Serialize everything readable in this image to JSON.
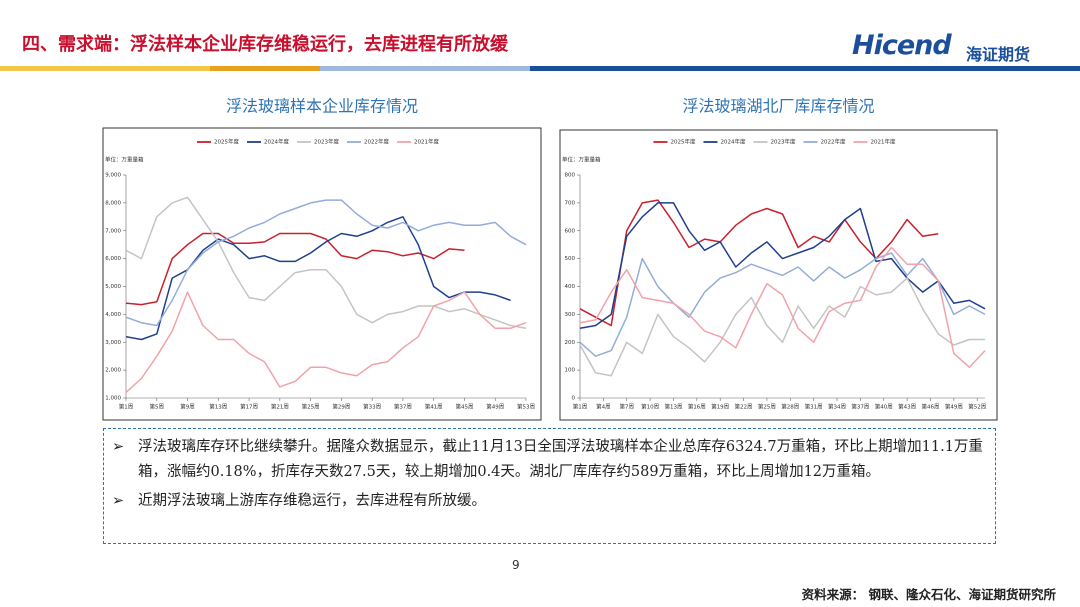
{
  "header": {
    "title": "四、需求端：浮法样本企业库存维稳运行，去库进程有所放缓",
    "logo": "Hicend",
    "logo_cn": "海证期货"
  },
  "chart_data": [
    {
      "type": "line",
      "title": "浮法玻璃样本企业库存情况",
      "unit": "单位：万重量箱",
      "x": [
        1,
        3,
        5,
        7,
        9,
        11,
        13,
        15,
        17,
        19,
        21,
        23,
        25,
        27,
        29,
        31,
        33,
        35,
        37,
        39,
        41,
        43,
        45,
        47,
        49,
        51,
        53
      ],
      "xlim": [
        1,
        53
      ],
      "xticks": [
        {
          "value": 1,
          "label": "第1周"
        },
        {
          "value": 5,
          "label": "第5周"
        },
        {
          "value": 9,
          "label": "第9周"
        },
        {
          "value": 13,
          "label": "第13周"
        },
        {
          "value": 17,
          "label": "第17周"
        },
        {
          "value": 21,
          "label": "第21周"
        },
        {
          "value": 25,
          "label": "第25周"
        },
        {
          "value": 29,
          "label": "第29周"
        },
        {
          "value": 33,
          "label": "第33周"
        },
        {
          "value": 37,
          "label": "第37周"
        },
        {
          "value": 41,
          "label": "第41周"
        },
        {
          "value": 45,
          "label": "第45周"
        },
        {
          "value": 49,
          "label": "第49周"
        },
        {
          "value": 53,
          "label": "第53周"
        }
      ],
      "ylim": [
        1000,
        9000
      ],
      "yticks": [
        {
          "value": 1000,
          "label": "1,000"
        },
        {
          "value": 2000,
          "label": "2,000"
        },
        {
          "value": 3000,
          "label": "3,000"
        },
        {
          "value": 4000,
          "label": "4,000"
        },
        {
          "value": 5000,
          "label": "5,000"
        },
        {
          "value": 6000,
          "label": "6,000"
        },
        {
          "value": 7000,
          "label": "7,000"
        },
        {
          "value": 8000,
          "label": "8,000"
        },
        {
          "value": 9000,
          "label": "9,000"
        }
      ],
      "series": [
        {
          "name": "2025年度",
          "color": "#c8202c",
          "values": [
            4400,
            4350,
            4450,
            6000,
            6500,
            6900,
            6900,
            6550,
            6550,
            6600,
            6900,
            6900,
            6900,
            6700,
            6100,
            6000,
            6300,
            6250,
            6100,
            6200,
            6000,
            6350,
            6300,
            null,
            null,
            null,
            null
          ]
        },
        {
          "name": "2024年度",
          "color": "#1f3f8f",
          "values": [
            3200,
            3100,
            3300,
            5300,
            5600,
            6300,
            6700,
            6500,
            6000,
            6100,
            5900,
            5900,
            6200,
            6600,
            6900,
            6800,
            7000,
            7300,
            7500,
            6500,
            5000,
            4600,
            4800,
            4800,
            4700,
            4500,
            null
          ]
        },
        {
          "name": "2023年度",
          "color": "#c4c4c4",
          "values": [
            6300,
            6000,
            7500,
            8000,
            8200,
            7400,
            6600,
            5500,
            4600,
            4500,
            5000,
            5500,
            5600,
            5600,
            5000,
            4000,
            3700,
            4000,
            4100,
            4300,
            4300,
            4100,
            4200,
            4000,
            3800,
            3600,
            3500
          ]
        },
        {
          "name": "2022年度",
          "color": "#93acd9",
          "values": [
            3900,
            3700,
            3600,
            4500,
            5600,
            6200,
            6600,
            6800,
            7100,
            7300,
            7600,
            7800,
            8000,
            8100,
            8100,
            7600,
            7200,
            7100,
            7300,
            7000,
            7200,
            7300,
            7200,
            7200,
            7300,
            6800,
            6500
          ]
        },
        {
          "name": "2021年度",
          "color": "#f2a2aa",
          "values": [
            1200,
            1700,
            2500,
            3400,
            4800,
            3600,
            3100,
            3100,
            2600,
            2300,
            1400,
            1600,
            2100,
            2100,
            1900,
            1800,
            2200,
            2300,
            2800,
            3200,
            4300,
            4500,
            4800,
            4000,
            3500,
            3500,
            3700
          ]
        }
      ]
    },
    {
      "type": "line",
      "title": "浮法玻璃湖北厂库库存情况",
      "unit": "单位：万重量箱",
      "x": [
        1,
        3,
        5,
        7,
        9,
        11,
        13,
        15,
        17,
        19,
        21,
        23,
        25,
        27,
        29,
        31,
        33,
        35,
        37,
        39,
        41,
        43,
        45,
        47,
        49,
        51,
        53
      ],
      "xlim": [
        1,
        53
      ],
      "xticks": [
        {
          "value": 1,
          "label": "第1周"
        },
        {
          "value": 4,
          "label": "第4周"
        },
        {
          "value": 7,
          "label": "第7周"
        },
        {
          "value": 10,
          "label": "第10周"
        },
        {
          "value": 13,
          "label": "第13周"
        },
        {
          "value": 16,
          "label": "第16周"
        },
        {
          "value": 19,
          "label": "第19周"
        },
        {
          "value": 22,
          "label": "第22周"
        },
        {
          "value": 25,
          "label": "第25周"
        },
        {
          "value": 28,
          "label": "第28周"
        },
        {
          "value": 31,
          "label": "第31周"
        },
        {
          "value": 34,
          "label": "第34周"
        },
        {
          "value": 37,
          "label": "第37周"
        },
        {
          "value": 40,
          "label": "第40周"
        },
        {
          "value": 43,
          "label": "第43周"
        },
        {
          "value": 46,
          "label": "第46周"
        },
        {
          "value": 49,
          "label": "第49周"
        },
        {
          "value": 52,
          "label": "第52周"
        }
      ],
      "ylim": [
        0,
        800
      ],
      "yticks": [
        0,
        100,
        200,
        300,
        400,
        500,
        600,
        700,
        800
      ],
      "series": [
        {
          "name": "2025年度",
          "color": "#c8202c",
          "values": [
            320,
            290,
            260,
            600,
            700,
            710,
            630,
            540,
            570,
            560,
            620,
            660,
            680,
            660,
            540,
            580,
            560,
            640,
            560,
            500,
            560,
            640,
            580,
            589,
            null,
            null,
            null
          ]
        },
        {
          "name": "2024年度",
          "color": "#1f3f8f",
          "values": [
            250,
            260,
            300,
            580,
            650,
            700,
            700,
            600,
            530,
            560,
            470,
            520,
            560,
            500,
            520,
            540,
            580,
            640,
            680,
            490,
            500,
            430,
            380,
            420,
            340,
            350,
            320
          ]
        },
        {
          "name": "2023年度",
          "color": "#c4c4c4",
          "values": [
            190,
            90,
            80,
            200,
            160,
            300,
            220,
            180,
            130,
            200,
            300,
            360,
            260,
            200,
            330,
            250,
            330,
            290,
            400,
            370,
            380,
            430,
            320,
            230,
            190,
            210,
            210
          ]
        },
        {
          "name": "2022年度",
          "color": "#93acd9",
          "values": [
            200,
            150,
            170,
            290,
            500,
            400,
            340,
            290,
            380,
            430,
            450,
            480,
            460,
            440,
            470,
            420,
            470,
            430,
            460,
            500,
            520,
            440,
            500,
            420,
            300,
            330,
            300
          ]
        },
        {
          "name": "2021年度",
          "color": "#f2a2aa",
          "values": [
            270,
            280,
            380,
            460,
            360,
            350,
            340,
            300,
            240,
            220,
            180,
            300,
            410,
            370,
            250,
            200,
            310,
            340,
            350,
            470,
            540,
            480,
            480,
            420,
            160,
            110,
            170
          ]
        }
      ]
    }
  ],
  "bullets": [
    "浮法玻璃库存环比继续攀升。据隆众数据显示，截止11月13日全国浮法玻璃样本企业总库存6324.7万重箱，环比上期增加11.1万重箱，涨幅约0.18%，折库存天数27.5天，较上期增加0.4天。湖北厂库库存约589万重箱，环比上周增加12万重箱。",
    "近期浮法玻璃上游库存维稳运行，去库进程有所放缓。"
  ],
  "page_number": "9",
  "source": "资料来源： 钢联、隆众石化、海证期货研究所"
}
